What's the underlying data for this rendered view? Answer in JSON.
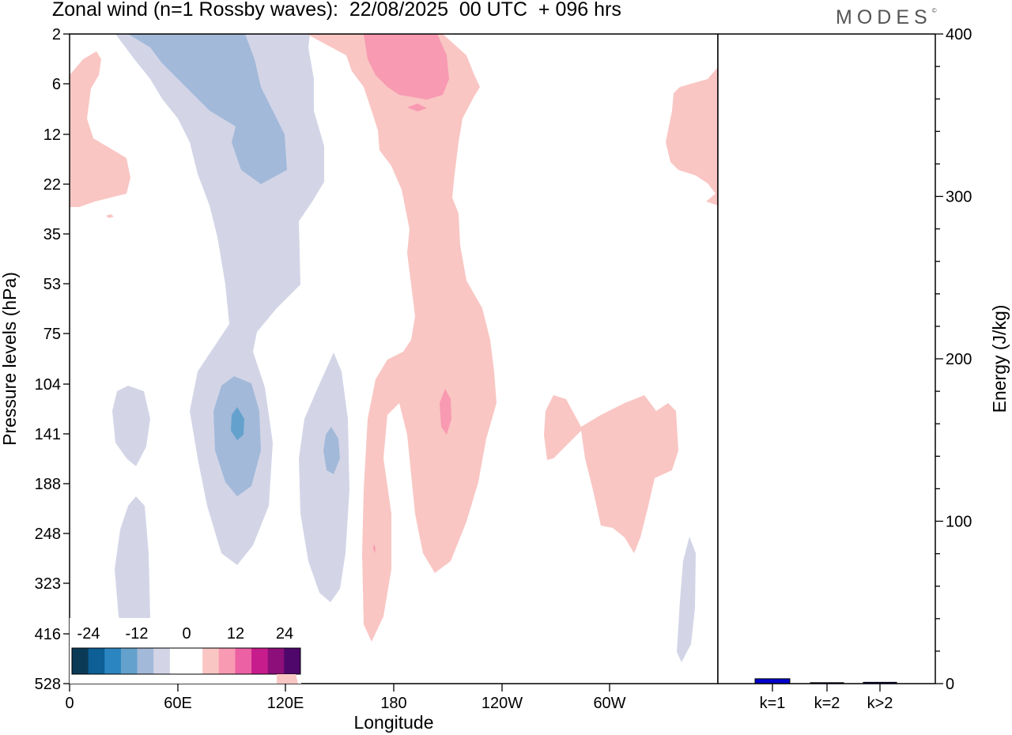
{
  "header": {
    "title": "Zonal wind (n=1 Rossby waves):  22/08/2025  00 UTC  + 096 hrs",
    "logo": "MODES",
    "logo_mark": "©"
  },
  "chart_data": [
    {
      "type": "heatmap",
      "xlabel": "Longitude",
      "ylabel": "Pressure levels (hPa)",
      "x_ticks": [
        "0",
        "60E",
        "120E",
        "180",
        "120W",
        "60W"
      ],
      "y_ticks": [
        "2",
        "6",
        "12",
        "22",
        "35",
        "53",
        "75",
        "104",
        "141",
        "188",
        "248",
        "323",
        "416",
        "528"
      ],
      "colorbar": {
        "tick_labels": [
          "-24",
          "-12",
          "0",
          "12",
          "24"
        ],
        "colors": [
          "#0b3a57",
          "#0d5f96",
          "#2b85c0",
          "#64a2cd",
          "#a3b9d9",
          "#d3d5e7",
          "#ffffff",
          "#ffffff",
          "#f9c6c3",
          "#f89ab2",
          "#ec61a4",
          "#c71c8c",
          "#8c0f7a",
          "#4f076b"
        ]
      },
      "contours": [
        {
          "id": "neg-upper-tongue",
          "level": "0 to -4",
          "color": "#d3d5e7"
        },
        {
          "id": "neg-upper-core",
          "level": "-4 to -8",
          "color": "#a3b9d9"
        },
        {
          "id": "neg-90e-core",
          "level": "-4 to -8",
          "color": "#a3b9d9"
        },
        {
          "id": "neg-90e-peak",
          "level": "-8 to -12",
          "color": "#64a2cd"
        },
        {
          "id": "neg-145e-tongue",
          "level": "0 to -4",
          "color": "#d3d5e7"
        },
        {
          "id": "neg-145e-core",
          "level": "-4 to -8",
          "color": "#a3b9d9"
        },
        {
          "id": "neg-40e-upper",
          "level": "0 to -4",
          "color": "#d3d5e7"
        },
        {
          "id": "neg-40e-lower",
          "level": "0 to -4",
          "color": "#d3d5e7"
        },
        {
          "id": "neg-65w-lower",
          "level": "0 to -4",
          "color": "#d3d5e7"
        },
        {
          "id": "pos-180-column",
          "level": "0 to 4",
          "color": "#f9c6c3"
        },
        {
          "id": "pos-180-upper-core",
          "level": "4 to 8",
          "color": "#f89ab2"
        },
        {
          "id": "pos-160w-core",
          "level": "4 to 8",
          "color": "#f89ab2"
        },
        {
          "id": "pos-west-edge",
          "level": "0 to 4",
          "color": "#f9c6c3"
        },
        {
          "id": "pos-east-edge",
          "level": "0 to 4",
          "color": "#f9c6c3"
        },
        {
          "id": "pos-100w-blob",
          "level": "0 to 4",
          "color": "#f9c6c3"
        }
      ]
    },
    {
      "type": "bar",
      "ylabel": "Energy (J/kg)",
      "categories": [
        "k=1",
        "k=2",
        "k>2"
      ],
      "values": [
        3,
        0.3,
        0.8
      ],
      "ylim": [
        0,
        400
      ],
      "y_ticks": [
        "0",
        "100",
        "200",
        "300",
        "400"
      ],
      "bar_colors": [
        "#0000cc",
        "#000080",
        "#000080"
      ]
    }
  ]
}
